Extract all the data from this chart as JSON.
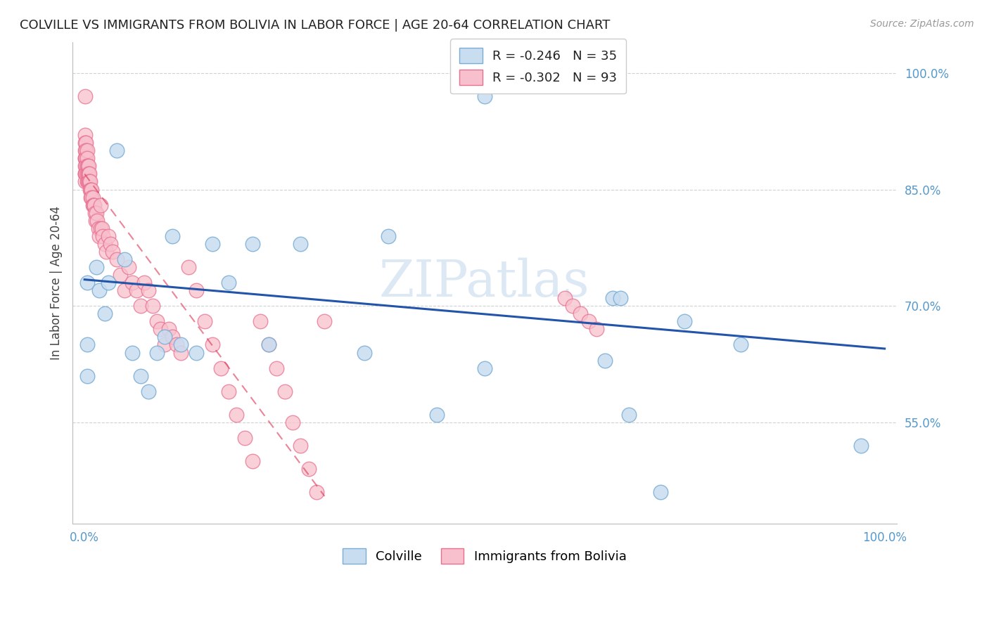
{
  "title": "COLVILLE VS IMMIGRANTS FROM BOLIVIA IN LABOR FORCE | AGE 20-64 CORRELATION CHART",
  "source": "Source: ZipAtlas.com",
  "ylabel": "In Labor Force | Age 20-64",
  "legend_label1": "Colville",
  "legend_label2": "Immigrants from Bolivia",
  "R1": -0.246,
  "N1": 35,
  "R2": -0.302,
  "N2": 93,
  "color_blue_face": "#c8ddf0",
  "color_blue_edge": "#7aadd4",
  "color_pink_face": "#f8c0cc",
  "color_pink_edge": "#e87090",
  "color_trendline_blue": "#2255aa",
  "color_trendline_pink": "#dd3355",
  "background_color": "#ffffff",
  "watermark_color": "#dde8f5",
  "blue_x": [
    0.003,
    0.003,
    0.003,
    0.015,
    0.018,
    0.025,
    0.03,
    0.04,
    0.05,
    0.06,
    0.07,
    0.08,
    0.09,
    0.1,
    0.11,
    0.12,
    0.14,
    0.16,
    0.18,
    0.21,
    0.23,
    0.27,
    0.35,
    0.38,
    0.44,
    0.5,
    0.66,
    0.67,
    0.68,
    0.75,
    0.82,
    0.97,
    0.5,
    0.65,
    0.72
  ],
  "blue_y": [
    0.73,
    0.65,
    0.61,
    0.75,
    0.72,
    0.69,
    0.73,
    0.9,
    0.76,
    0.64,
    0.61,
    0.59,
    0.64,
    0.66,
    0.79,
    0.65,
    0.64,
    0.78,
    0.73,
    0.78,
    0.65,
    0.78,
    0.64,
    0.79,
    0.56,
    0.97,
    0.71,
    0.71,
    0.56,
    0.68,
    0.65,
    0.52,
    0.62,
    0.63,
    0.46
  ],
  "pink_x": [
    0.001,
    0.001,
    0.001,
    0.001,
    0.001,
    0.001,
    0.001,
    0.001,
    0.001,
    0.001,
    0.002,
    0.002,
    0.002,
    0.002,
    0.002,
    0.003,
    0.003,
    0.003,
    0.003,
    0.003,
    0.004,
    0.004,
    0.004,
    0.005,
    0.005,
    0.005,
    0.006,
    0.006,
    0.007,
    0.007,
    0.008,
    0.008,
    0.009,
    0.009,
    0.01,
    0.01,
    0.011,
    0.012,
    0.013,
    0.014,
    0.015,
    0.016,
    0.017,
    0.018,
    0.02,
    0.02,
    0.022,
    0.023,
    0.025,
    0.027,
    0.03,
    0.032,
    0.035,
    0.04,
    0.045,
    0.05,
    0.055,
    0.06,
    0.065,
    0.07,
    0.075,
    0.08,
    0.085,
    0.09,
    0.095,
    0.1,
    0.105,
    0.11,
    0.115,
    0.12,
    0.13,
    0.14,
    0.15,
    0.16,
    0.17,
    0.18,
    0.19,
    0.2,
    0.21,
    0.22,
    0.23,
    0.24,
    0.25,
    0.26,
    0.27,
    0.28,
    0.29,
    0.3,
    0.6,
    0.61,
    0.62,
    0.63,
    0.64
  ],
  "pink_y": [
    0.97,
    0.92,
    0.91,
    0.9,
    0.89,
    0.89,
    0.88,
    0.87,
    0.87,
    0.86,
    0.91,
    0.9,
    0.89,
    0.88,
    0.87,
    0.9,
    0.89,
    0.88,
    0.87,
    0.86,
    0.88,
    0.87,
    0.86,
    0.88,
    0.87,
    0.86,
    0.87,
    0.86,
    0.86,
    0.85,
    0.85,
    0.84,
    0.85,
    0.84,
    0.84,
    0.83,
    0.83,
    0.83,
    0.82,
    0.81,
    0.82,
    0.81,
    0.8,
    0.79,
    0.83,
    0.8,
    0.8,
    0.79,
    0.78,
    0.77,
    0.79,
    0.78,
    0.77,
    0.76,
    0.74,
    0.72,
    0.75,
    0.73,
    0.72,
    0.7,
    0.73,
    0.72,
    0.7,
    0.68,
    0.67,
    0.65,
    0.67,
    0.66,
    0.65,
    0.64,
    0.75,
    0.72,
    0.68,
    0.65,
    0.62,
    0.59,
    0.56,
    0.53,
    0.5,
    0.68,
    0.65,
    0.62,
    0.59,
    0.55,
    0.52,
    0.49,
    0.46,
    0.68,
    0.71,
    0.7,
    0.69,
    0.68,
    0.67
  ],
  "blue_trendline_x": [
    0.0,
    1.0
  ],
  "blue_trendline_y": [
    0.734,
    0.645
  ],
  "pink_trendline_x": [
    0.0,
    0.3
  ],
  "pink_trendline_y": [
    0.87,
    0.455
  ],
  "xlim": [
    -0.015,
    1.015
  ],
  "ylim": [
    0.42,
    1.04
  ],
  "yticks": [
    0.55,
    0.7,
    0.85,
    1.0
  ]
}
